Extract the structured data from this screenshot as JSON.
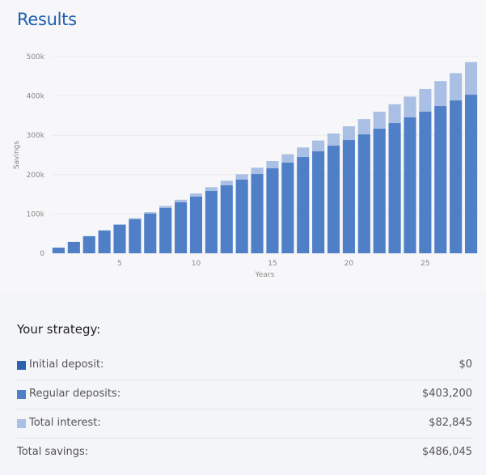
{
  "header": {
    "title": "Results"
  },
  "chart_data": {
    "type": "bar",
    "stacked": true,
    "xlabel": "Years",
    "ylabel": "Savings",
    "ylim": [
      0,
      500000
    ],
    "y_ticks": [
      "0",
      "100k",
      "200k",
      "300k",
      "400k",
      "500k"
    ],
    "x_ticks": [
      "5",
      "10",
      "15",
      "20",
      "25"
    ],
    "grid": true,
    "categories": [
      1,
      2,
      3,
      4,
      5,
      6,
      7,
      8,
      9,
      10,
      11,
      12,
      13,
      14,
      15,
      16,
      17,
      18,
      19,
      20,
      21,
      22,
      23,
      24,
      25,
      26,
      27,
      28
    ],
    "series": [
      {
        "color": "#4f7fc6",
        "values": [
          14400,
          28800,
          43200,
          57600,
          72000,
          86400,
          100800,
          115200,
          129600,
          144000,
          158400,
          172800,
          187200,
          201600,
          216000,
          230400,
          244800,
          259200,
          273600,
          288000,
          302400,
          316800,
          331200,
          345600,
          360000,
          374400,
          388800,
          403200
        ]
      },
      {
        "color": "#a9bfe4",
        "values": [
          0,
          300,
          700,
          1300,
          2000,
          2900,
          3900,
          5100,
          6500,
          8000,
          9700,
          11600,
          13700,
          16000,
          18500,
          21300,
          24300,
          27500,
          31000,
          34800,
          38800,
          43100,
          47700,
          52600,
          57800,
          63400,
          69300,
          82845
        ]
      }
    ]
  },
  "strategy": {
    "title": "Your strategy:",
    "items": [
      {
        "label": "Initial deposit:",
        "value": "$0",
        "color": "#2a62b0"
      },
      {
        "label": "Regular deposits:",
        "value": "$403,200",
        "color": "#4f7fc6"
      },
      {
        "label": "Total interest:",
        "value": "$82,845",
        "color": "#a9bfe4"
      }
    ],
    "total": {
      "label": "Total savings:",
      "value": "$486,045"
    }
  }
}
